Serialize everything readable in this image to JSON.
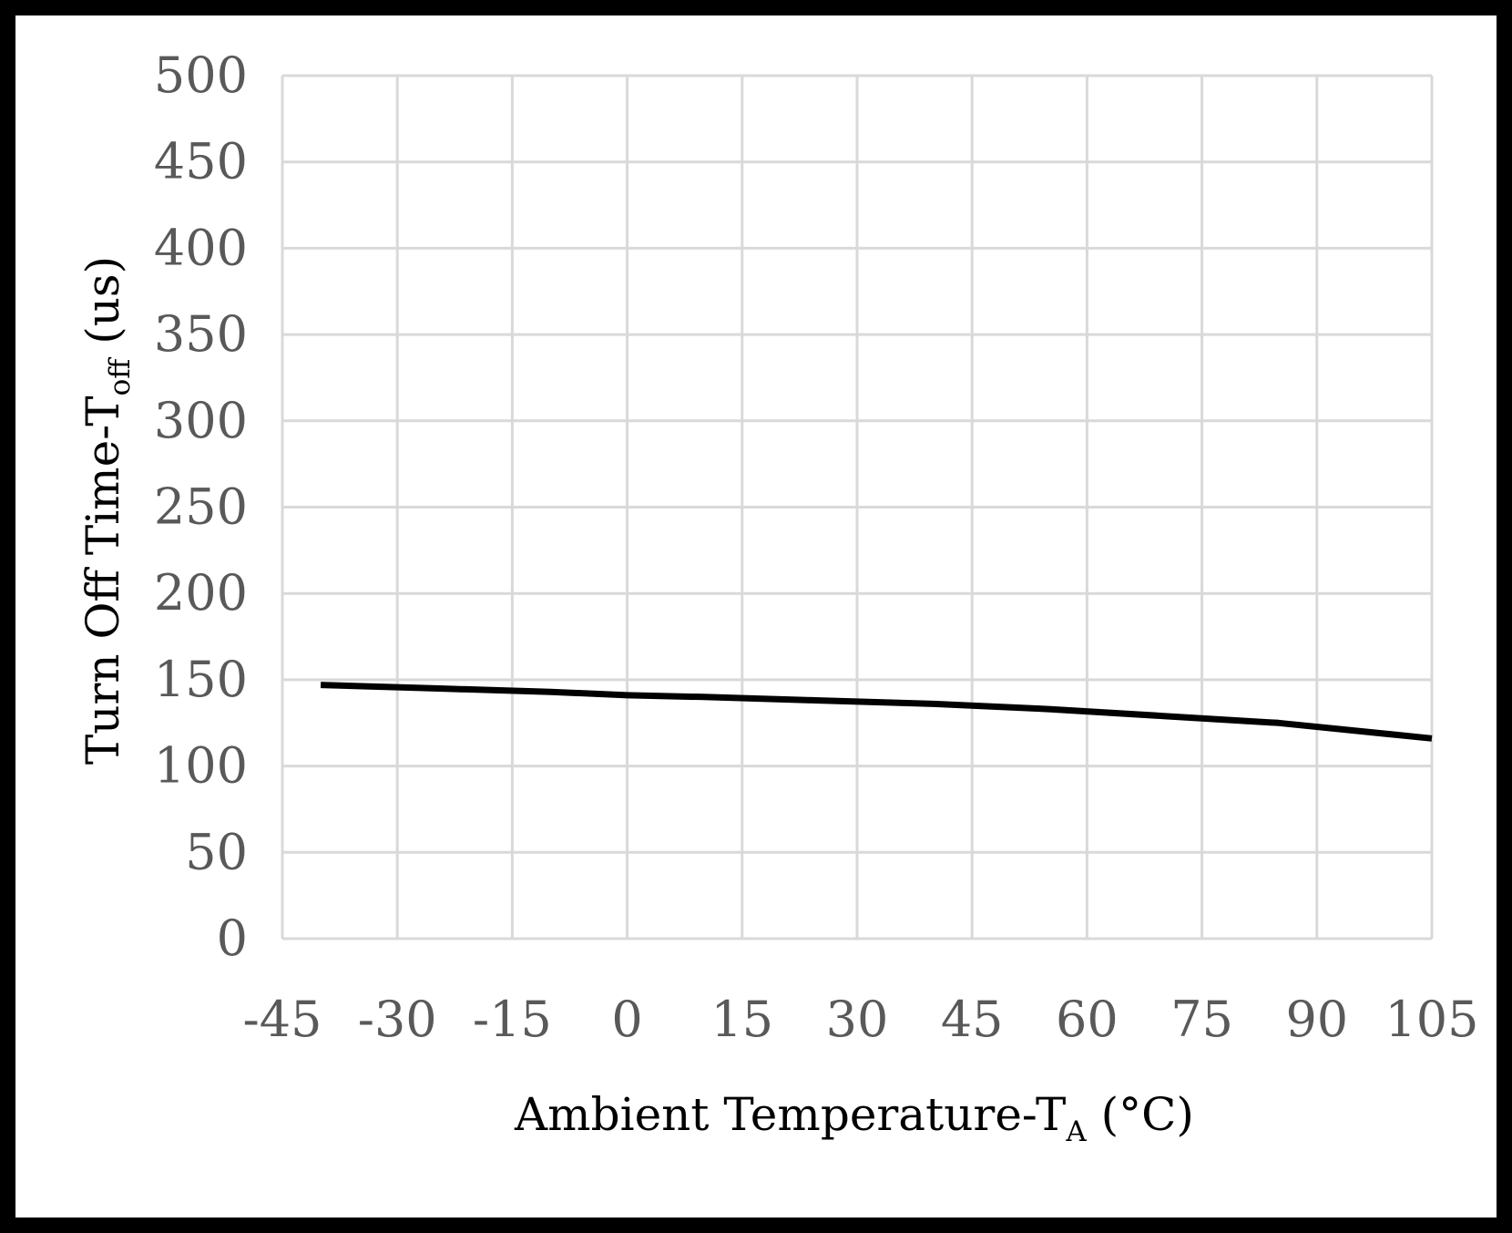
{
  "chart_data": {
    "type": "line",
    "title": "",
    "xlabel": {
      "main": "Ambient Temperature-T",
      "sub": "A",
      "unit": " (°C)"
    },
    "ylabel": {
      "main": "Turn Off  Time-T",
      "sub": "off",
      "unit": " (us)"
    },
    "xlim": [
      -45,
      105
    ],
    "ylim": [
      0,
      500
    ],
    "x_ticks": [
      -45,
      -30,
      -15,
      0,
      15,
      30,
      45,
      60,
      75,
      90,
      105
    ],
    "y_ticks": [
      0,
      50,
      100,
      150,
      200,
      250,
      300,
      350,
      400,
      450,
      500
    ],
    "grid": true,
    "series": [
      {
        "name": "Toff",
        "color": "#000000",
        "x": [
          -40,
          -25,
          -10,
          0,
          10,
          25,
          40,
          55,
          70,
          85,
          105
        ],
        "y": [
          147,
          145,
          143,
          141,
          140,
          138,
          136,
          133,
          129,
          125,
          116
        ]
      }
    ]
  },
  "colors": {
    "grid": "#d9d9d9",
    "tick_text": "#595959",
    "frame": "#000000"
  }
}
